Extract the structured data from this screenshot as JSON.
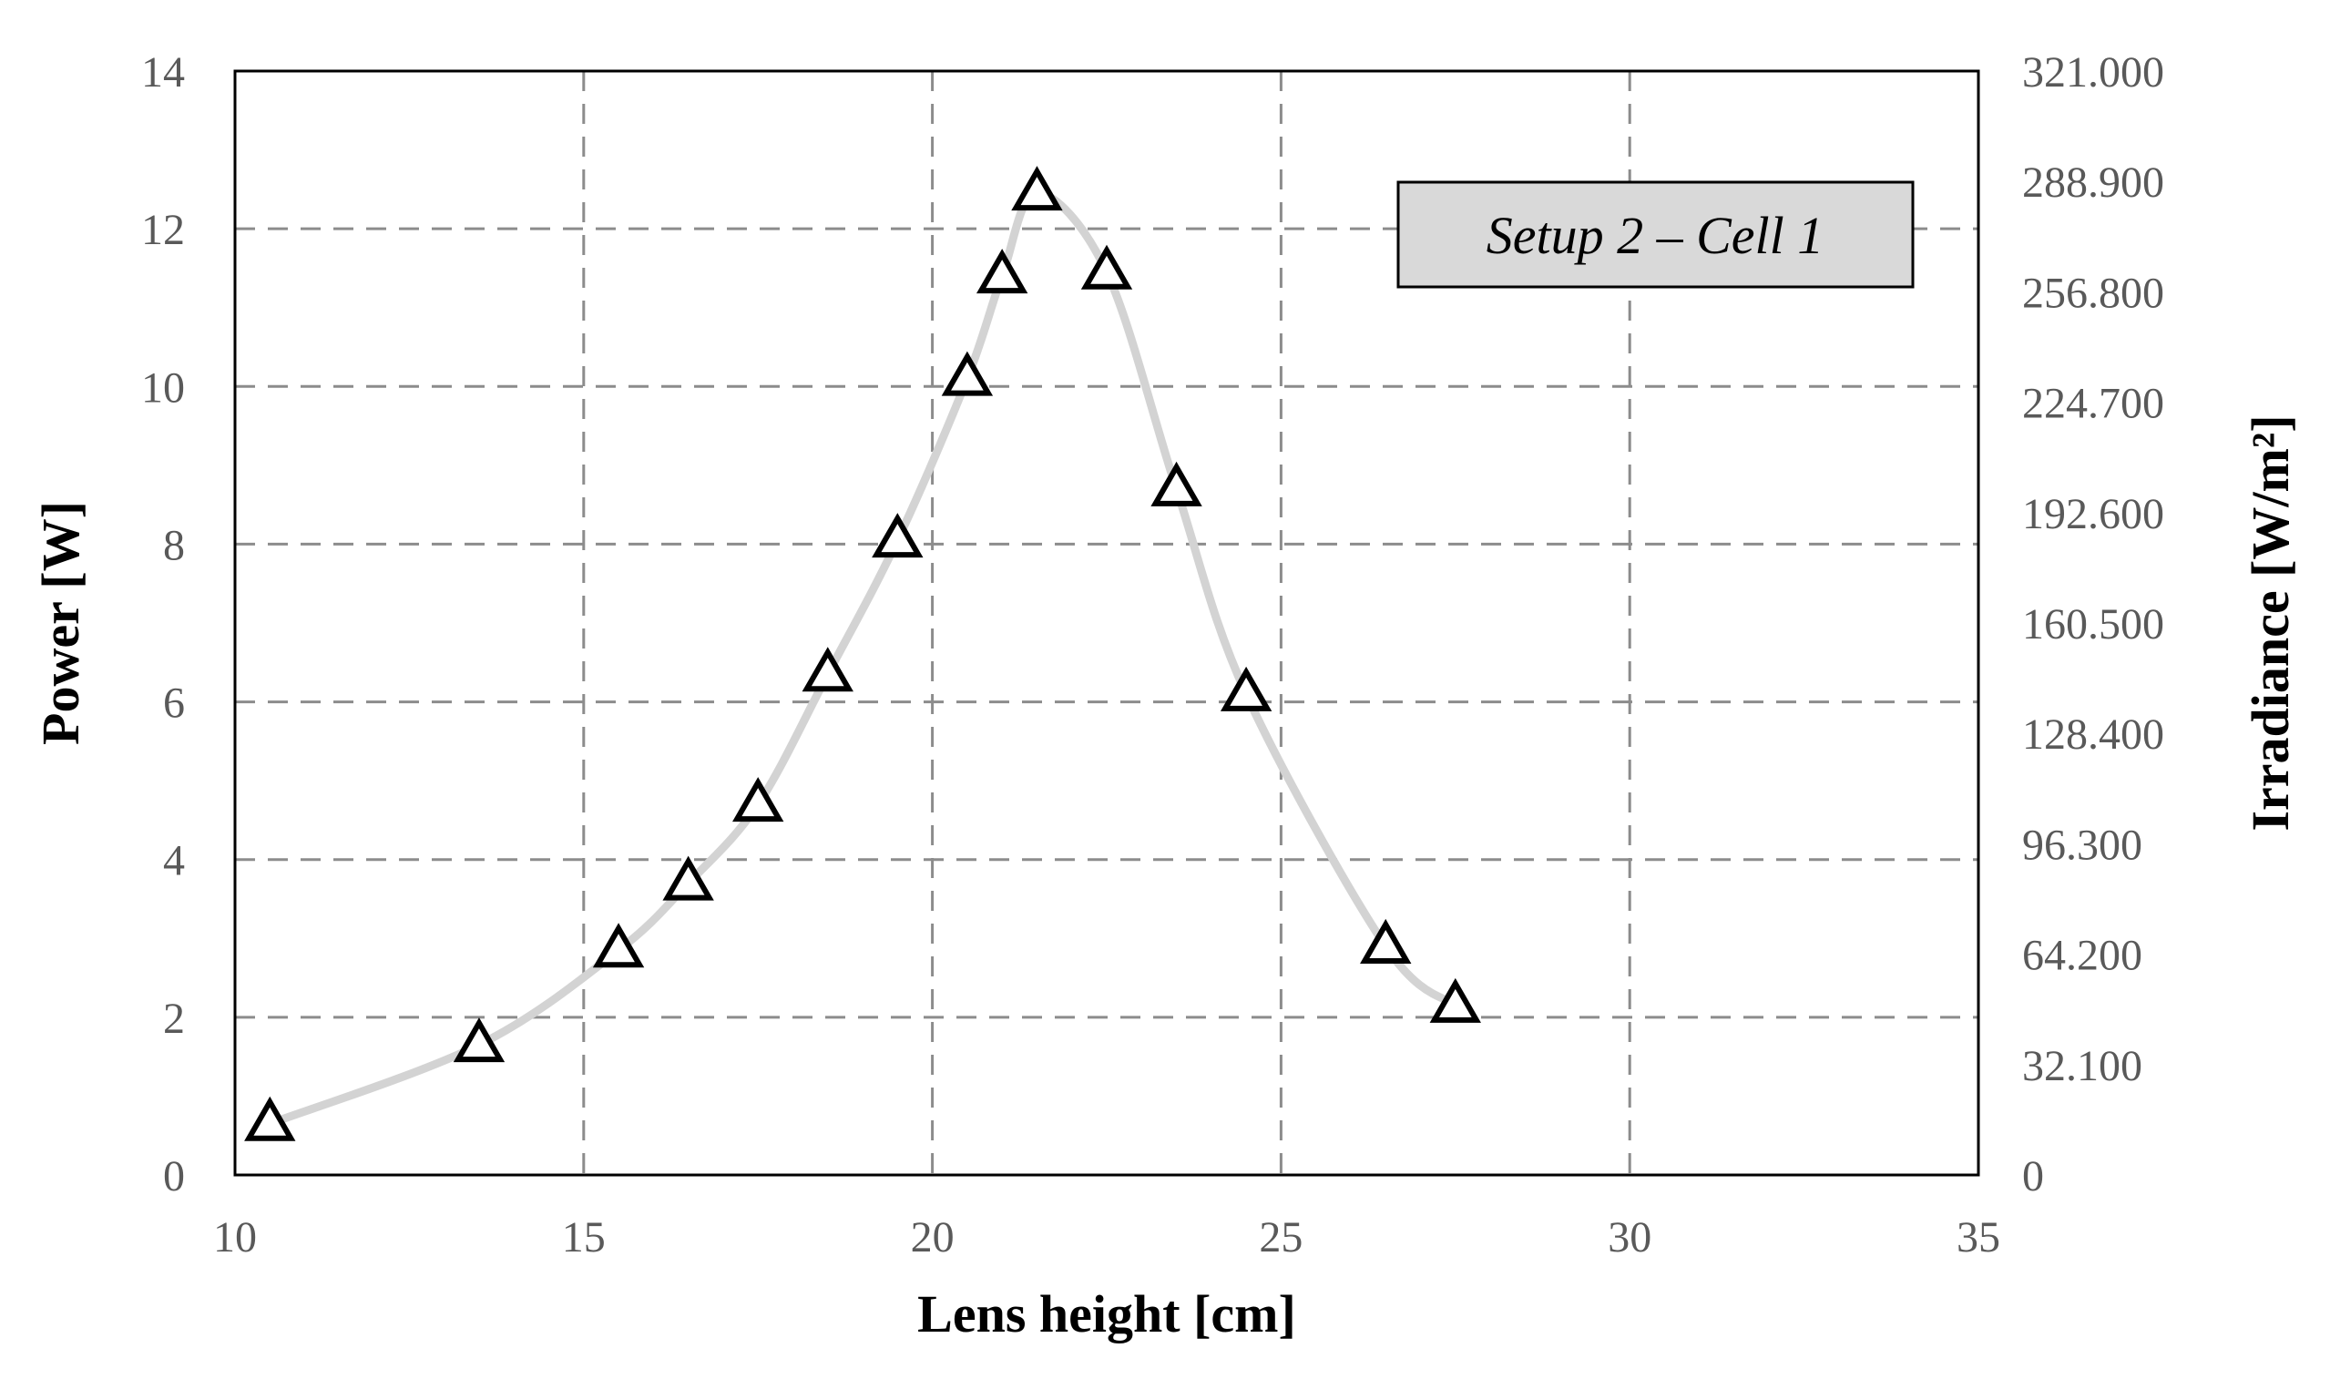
{
  "chart_data": {
    "type": "line",
    "xlabel": "Lens height [cm]",
    "ylabel": "Power [W]",
    "y2label": "Irradiance [W/m²]",
    "annotation": "Setup 2 – Cell 1",
    "xlim": [
      10,
      35
    ],
    "ylim": [
      0,
      14
    ],
    "y2lim": [
      0,
      321
    ],
    "x_ticks": [
      "10",
      "15",
      "20",
      "25",
      "30",
      "35"
    ],
    "y_ticks": [
      "0",
      "2",
      "4",
      "6",
      "8",
      "10",
      "12",
      "14"
    ],
    "y2_ticks": [
      "0",
      "32.100",
      "64.200",
      "96.300",
      "128.400",
      "160.500",
      "192.600",
      "224.700",
      "256.800",
      "288.900",
      "321.000"
    ],
    "grid": true,
    "marker": "triangle",
    "line_color": "#d3d3d3",
    "series": [
      {
        "x": [
          10.5,
          13.5,
          15.5,
          16.5,
          17.5,
          18.5,
          19.5,
          20.5,
          21.0,
          21.5,
          22.5,
          23.5,
          24.5,
          26.5,
          27.5
        ],
        "values": [
          0.65,
          1.65,
          2.85,
          3.7,
          4.7,
          6.35,
          8.05,
          10.1,
          11.4,
          12.45,
          11.45,
          8.7,
          6.1,
          2.9,
          2.15
        ]
      }
    ]
  }
}
